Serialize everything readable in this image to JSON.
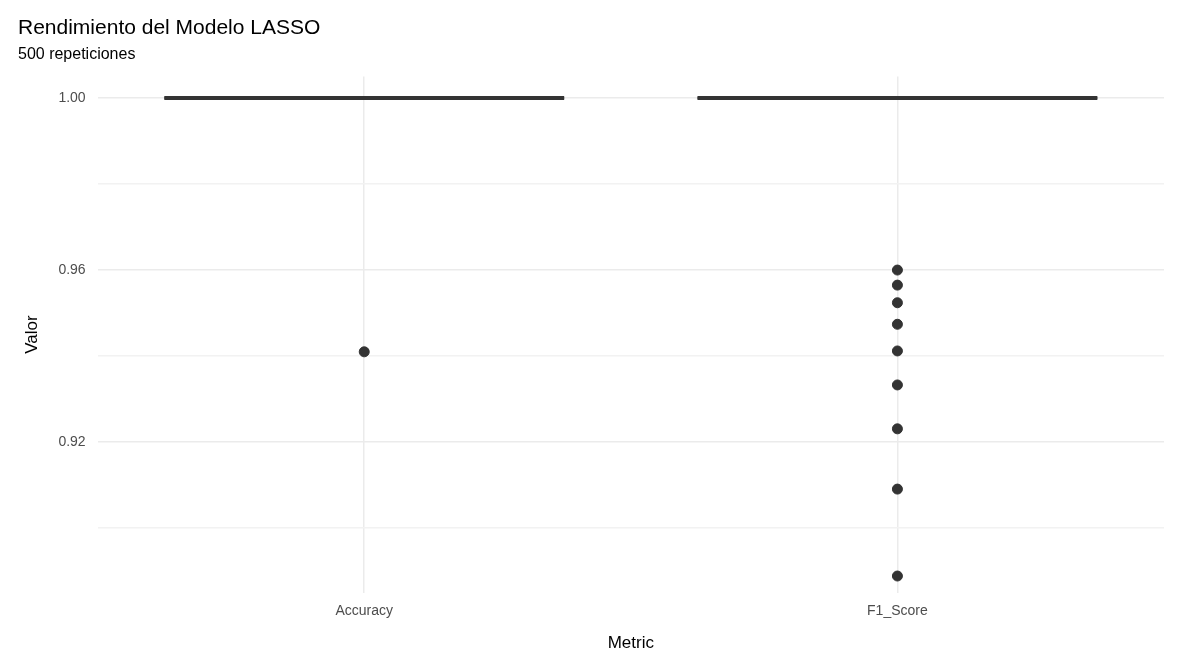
{
  "chart_data": {
    "type": "box",
    "title": "Rendimiento del Modelo LASSO",
    "subtitle": "500 repeticiones",
    "xlabel": "Metric",
    "ylabel": "Valor",
    "categories": [
      "Accuracy",
      "F1_Score"
    ],
    "color": "#333333",
    "boxes": [
      {
        "low": 1,
        "q1": 1,
        "median": 1,
        "q3": 1,
        "high": 1,
        "outliers": [
          0.941
        ]
      },
      {
        "low": 1,
        "q1": 1,
        "median": 1,
        "q3": 1,
        "high": 1,
        "outliers": [
          0.96,
          0.9565,
          0.9524,
          0.9474,
          0.9412,
          0.9333,
          0.9231,
          0.9091,
          0.8889
        ]
      }
    ],
    "ylim": [
      0.885,
      1.005
    ],
    "yticks": [
      {
        "value": 0.9,
        "label": null
      },
      {
        "value": 0.92,
        "label": "0.92"
      },
      {
        "value": 0.94,
        "label": null
      },
      {
        "value": 0.96,
        "label": "0.96"
      },
      {
        "value": 0.98,
        "label": null
      },
      {
        "value": 1,
        "label": "1.00"
      }
    ],
    "grid": true,
    "legend": false,
    "marker": "circle"
  }
}
